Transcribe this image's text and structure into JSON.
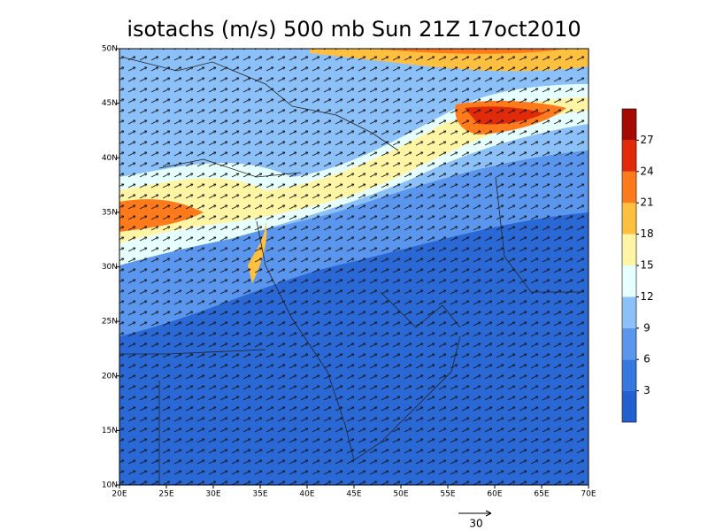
{
  "title": "isotachs (m/s) 500 mb Sun 21Z 17oct2010",
  "map": {
    "lon_ticks": [
      "20E",
      "25E",
      "30E",
      "35E",
      "40E",
      "45E",
      "50E",
      "55E",
      "60E",
      "65E",
      "70E"
    ],
    "lat_ticks": [
      "10N",
      "15N",
      "20N",
      "25N",
      "30N",
      "35N",
      "40N",
      "45N",
      "50N"
    ]
  },
  "colorbar": {
    "labels": [
      "3",
      "6",
      "9",
      "12",
      "15",
      "18",
      "21",
      "24",
      "27"
    ],
    "colors": [
      "#2160d0",
      "#3478e0",
      "#5a96ee",
      "#8cc0f8",
      "#e6ffff",
      "#fff5a5",
      "#ffc040",
      "#ff7a1a",
      "#e12a0a",
      "#a50a00"
    ]
  },
  "reference_vector": {
    "label": "30"
  }
}
